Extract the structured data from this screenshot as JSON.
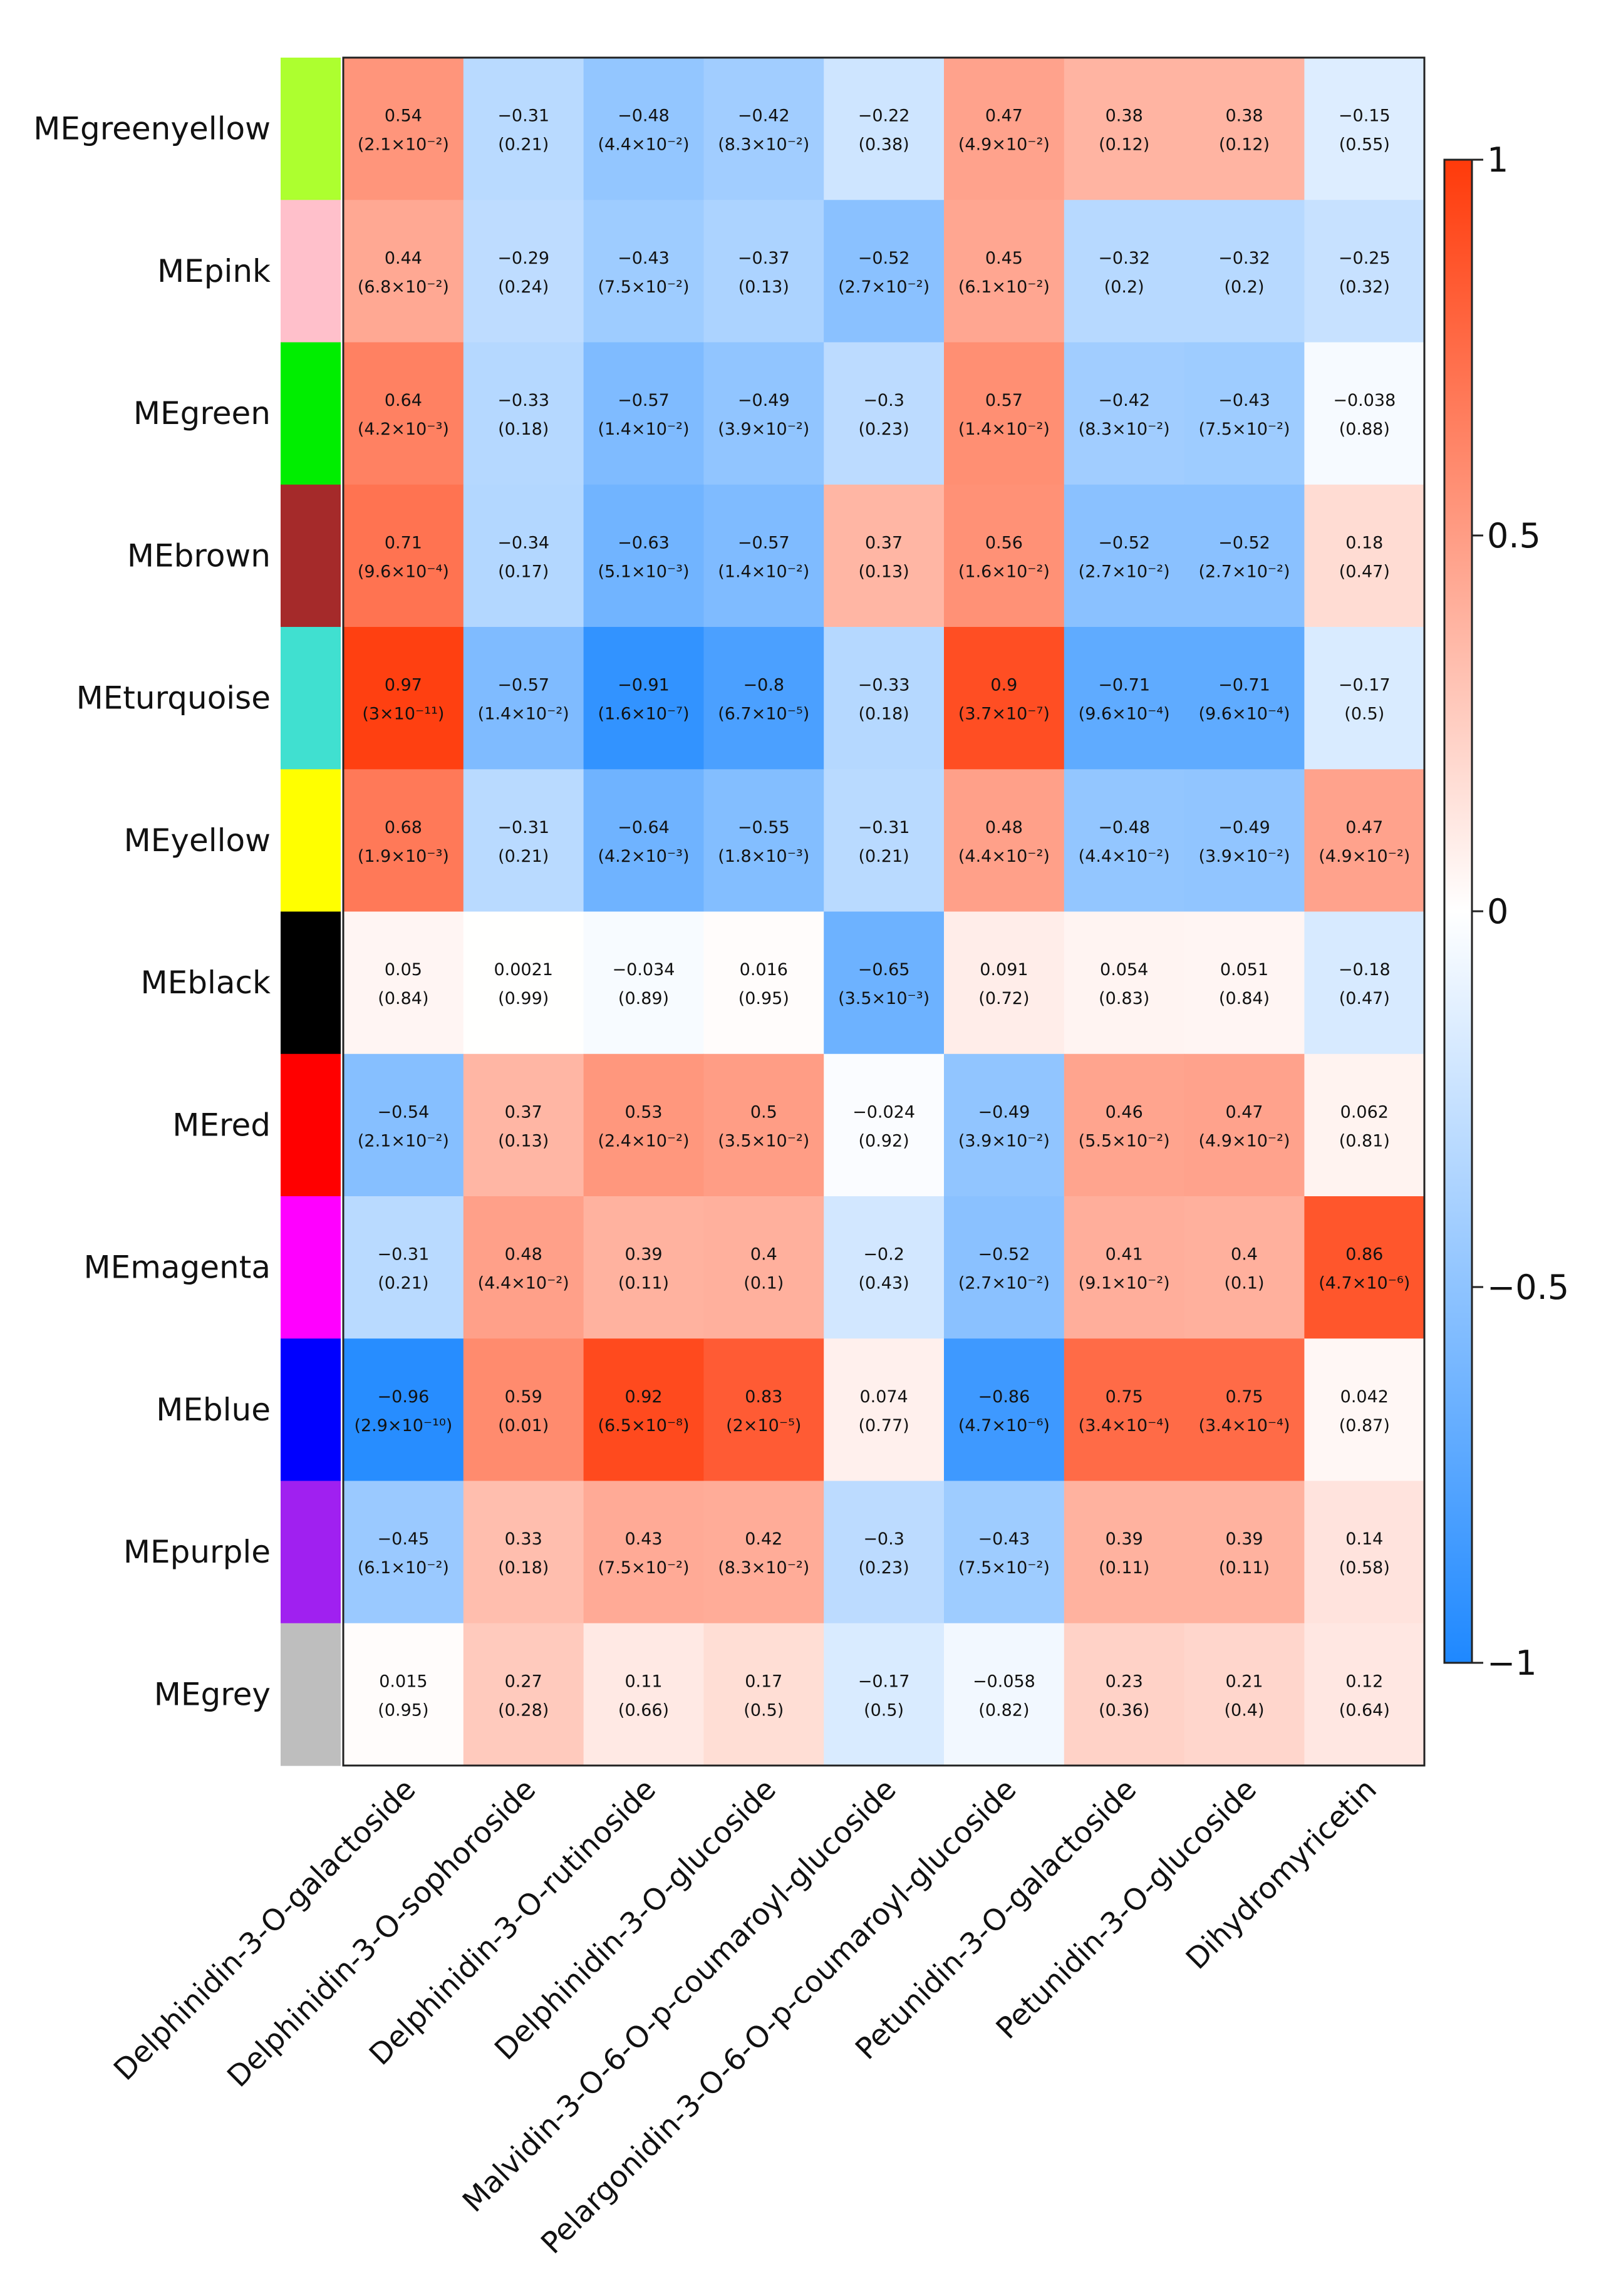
{
  "chart_data": {
    "type": "heatmap",
    "title": "",
    "xlabel": "",
    "ylabel": "",
    "rows": [
      "MEgreenyellow",
      "MEpink",
      "MEgreen",
      "MEbrown",
      "MEturquoise",
      "MEyellow",
      "MEblack",
      "MEred",
      "MEmagenta",
      "MEblue",
      "MEpurple",
      "MEgrey"
    ],
    "row_colors": [
      "#adff2f",
      "#ffc0cb",
      "#00ee00",
      "#a52a2a",
      "#40e0d0",
      "#ffff00",
      "#000000",
      "#ff0000",
      "#ff00ff",
      "#0000ff",
      "#a020f0",
      "#bebebe"
    ],
    "columns": [
      "Delphinidin-3-O-galactoside",
      "Delphinidin-3-O-sophoroside",
      "Delphinidin-3-O-rutinoside",
      "Delphinidin-3-O-glucoside",
      "Malvidin-3-O-6-O-p-coumaroyl-glucoside",
      "Pelargonidin-3-O-6-O-p-coumaroyl-glucoside",
      "Petunidin-3-O-galactoside",
      "Petunidin-3-O-glucoside",
      "Dihydromyricetin"
    ],
    "values": [
      [
        0.54,
        -0.31,
        -0.48,
        -0.42,
        -0.22,
        0.47,
        0.38,
        0.38,
        -0.15
      ],
      [
        0.44,
        -0.29,
        -0.43,
        -0.37,
        -0.52,
        0.45,
        -0.32,
        -0.32,
        -0.25
      ],
      [
        0.64,
        -0.33,
        -0.57,
        -0.49,
        -0.3,
        0.57,
        -0.42,
        -0.43,
        -0.038
      ],
      [
        0.71,
        -0.34,
        -0.63,
        -0.57,
        0.37,
        0.56,
        -0.52,
        -0.52,
        0.18
      ],
      [
        0.97,
        -0.57,
        -0.91,
        -0.8,
        -0.33,
        0.9,
        -0.71,
        -0.71,
        -0.17
      ],
      [
        0.68,
        -0.31,
        -0.64,
        -0.55,
        -0.31,
        0.48,
        -0.48,
        -0.49,
        0.47
      ],
      [
        0.05,
        0.0021,
        -0.034,
        0.016,
        -0.65,
        0.091,
        0.054,
        0.051,
        -0.18
      ],
      [
        -0.54,
        0.37,
        0.53,
        0.5,
        -0.024,
        -0.49,
        0.46,
        0.47,
        0.062
      ],
      [
        -0.31,
        0.48,
        0.39,
        0.4,
        -0.2,
        -0.52,
        0.41,
        0.4,
        0.86
      ],
      [
        -0.96,
        0.59,
        0.92,
        0.83,
        0.074,
        -0.86,
        0.75,
        0.75,
        0.042
      ],
      [
        -0.45,
        0.33,
        0.43,
        0.42,
        -0.3,
        -0.43,
        0.39,
        0.39,
        0.14
      ],
      [
        0.015,
        0.27,
        0.11,
        0.17,
        -0.17,
        -0.058,
        0.23,
        0.21,
        0.12
      ]
    ],
    "value_labels": [
      [
        "0.54",
        "−0.31",
        "−0.48",
        "−0.42",
        "−0.22",
        "0.47",
        "0.38",
        "0.38",
        "−0.15"
      ],
      [
        "0.44",
        "−0.29",
        "−0.43",
        "−0.37",
        "−0.52",
        "0.45",
        "−0.32",
        "−0.32",
        "−0.25"
      ],
      [
        "0.64",
        "−0.33",
        "−0.57",
        "−0.49",
        "−0.3",
        "0.57",
        "−0.42",
        "−0.43",
        "−0.038"
      ],
      [
        "0.71",
        "−0.34",
        "−0.63",
        "−0.57",
        "0.37",
        "0.56",
        "−0.52",
        "−0.52",
        "0.18"
      ],
      [
        "0.97",
        "−0.57",
        "−0.91",
        "−0.8",
        "−0.33",
        "0.9",
        "−0.71",
        "−0.71",
        "−0.17"
      ],
      [
        "0.68",
        "−0.31",
        "−0.64",
        "−0.55",
        "−0.31",
        "0.48",
        "−0.48",
        "−0.49",
        "0.47"
      ],
      [
        "0.05",
        "0.0021",
        "−0.034",
        "0.016",
        "−0.65",
        "0.091",
        "0.054",
        "0.051",
        "−0.18"
      ],
      [
        "−0.54",
        "0.37",
        "0.53",
        "0.5",
        "−0.024",
        "−0.49",
        "0.46",
        "0.47",
        "0.062"
      ],
      [
        "−0.31",
        "0.48",
        "0.39",
        "0.4",
        "−0.2",
        "−0.52",
        "0.41",
        "0.4",
        "0.86"
      ],
      [
        "−0.96",
        "0.59",
        "0.92",
        "0.83",
        "0.074",
        "−0.86",
        "0.75",
        "0.75",
        "0.042"
      ],
      [
        "−0.45",
        "0.33",
        "0.43",
        "0.42",
        "−0.3",
        "−0.43",
        "0.39",
        "0.39",
        "0.14"
      ],
      [
        "0.015",
        "0.27",
        "0.11",
        "0.17",
        "−0.17",
        "−0.058",
        "0.23",
        "0.21",
        "0.12"
      ]
    ],
    "p_values": [
      [
        "(2.1×10⁻²)",
        "(0.21)",
        "(4.4×10⁻²)",
        "(8.3×10⁻²)",
        "(0.38)",
        "(4.9×10⁻²)",
        "(0.12)",
        "(0.12)",
        "(0.55)"
      ],
      [
        "(6.8×10⁻²)",
        "(0.24)",
        "(7.5×10⁻²)",
        "(0.13)",
        "(2.7×10⁻²)",
        "(6.1×10⁻²)",
        "(0.2)",
        "(0.2)",
        "(0.32)"
      ],
      [
        "(4.2×10⁻³)",
        "(0.18)",
        "(1.4×10⁻²)",
        "(3.9×10⁻²)",
        "(0.23)",
        "(1.4×10⁻²)",
        "(8.3×10⁻²)",
        "(7.5×10⁻²)",
        "(0.88)"
      ],
      [
        "(9.6×10⁻⁴)",
        "(0.17)",
        "(5.1×10⁻³)",
        "(1.4×10⁻²)",
        "(0.13)",
        "(1.6×10⁻²)",
        "(2.7×10⁻²)",
        "(2.7×10⁻²)",
        "(0.47)"
      ],
      [
        "(3×10⁻¹¹)",
        "(1.4×10⁻²)",
        "(1.6×10⁻⁷)",
        "(6.7×10⁻⁵)",
        "(0.18)",
        "(3.7×10⁻⁷)",
        "(9.6×10⁻⁴)",
        "(9.6×10⁻⁴)",
        "(0.5)"
      ],
      [
        "(1.9×10⁻³)",
        "(0.21)",
        "(4.2×10⁻³)",
        "(1.8×10⁻³)",
        "(0.21)",
        "(4.4×10⁻²)",
        "(4.4×10⁻²)",
        "(3.9×10⁻²)",
        "(4.9×10⁻²)"
      ],
      [
        "(0.84)",
        "(0.99)",
        "(0.89)",
        "(0.95)",
        "(3.5×10⁻³)",
        "(0.72)",
        "(0.83)",
        "(0.84)",
        "(0.47)"
      ],
      [
        "(2.1×10⁻²)",
        "(0.13)",
        "(2.4×10⁻²)",
        "(3.5×10⁻²)",
        "(0.92)",
        "(3.9×10⁻²)",
        "(5.5×10⁻²)",
        "(4.9×10⁻²)",
        "(0.81)"
      ],
      [
        "(0.21)",
        "(4.4×10⁻²)",
        "(0.11)",
        "(0.1)",
        "(0.43)",
        "(2.7×10⁻²)",
        "(9.1×10⁻²)",
        "(0.1)",
        "(4.7×10⁻⁶)"
      ],
      [
        "(2.9×10⁻¹⁰)",
        "(0.01)",
        "(6.5×10⁻⁸)",
        "(2×10⁻⁵)",
        "(0.77)",
        "(4.7×10⁻⁶)",
        "(3.4×10⁻⁴)",
        "(3.4×10⁻⁴)",
        "(0.87)"
      ],
      [
        "(6.1×10⁻²)",
        "(0.18)",
        "(7.5×10⁻²)",
        "(8.3×10⁻²)",
        "(0.23)",
        "(7.5×10⁻²)",
        "(0.11)",
        "(0.11)",
        "(0.58)"
      ],
      [
        "(0.95)",
        "(0.28)",
        "(0.66)",
        "(0.5)",
        "(0.5)",
        "(0.82)",
        "(0.36)",
        "(0.4)",
        "(0.64)"
      ]
    ],
    "color_scale": {
      "range": [
        -1,
        1
      ],
      "low_color": "#1e88ff",
      "mid_color": "#ffffff",
      "high_color": "#ff3a0a",
      "ticks": [
        1,
        0.5,
        0,
        -0.5,
        -1
      ],
      "tick_labels": [
        "1",
        "0.5",
        "0",
        "−0.5",
        "−1"
      ],
      "legend_position": "right"
    }
  }
}
